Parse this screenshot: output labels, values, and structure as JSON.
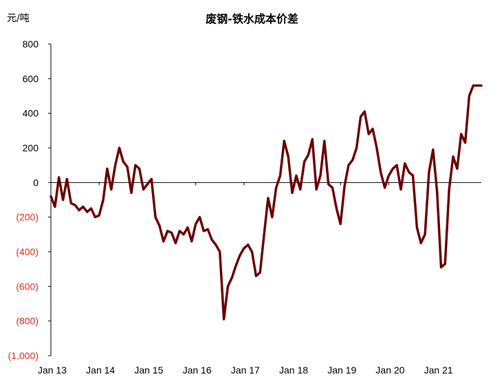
{
  "chart_data": {
    "type": "line",
    "title": "废钢-铁水成本价差",
    "ylabel": "元/吨",
    "xlabel": "",
    "ylim": [
      -1000,
      800
    ],
    "y_ticks": [
      800,
      600,
      400,
      200,
      0,
      -200,
      -400,
      -600,
      -800,
      -1000
    ],
    "y_tick_labels": [
      "800",
      "600",
      "400",
      "200",
      "0",
      "(200)",
      "(400)",
      "(600)",
      "(800)",
      "(1,000)"
    ],
    "negative_label_color": "#e0301e",
    "x_tick_labels": [
      "Jan 13",
      "Jan 14",
      "Jan 15",
      "Jan 16",
      "Jan 17",
      "Jan 18",
      "Jan 19",
      "Jan 20",
      "Jan 21"
    ],
    "xlim": [
      "2013-01",
      "2021-12"
    ],
    "grid": false,
    "line_color": "#6b0000",
    "series": [
      {
        "x": [
          "2013-01",
          "2013-02",
          "2013-03",
          "2013-04",
          "2013-05",
          "2013-06",
          "2013-07",
          "2013-08",
          "2013-09",
          "2013-10",
          "2013-11",
          "2013-12",
          "2014-01",
          "2014-02",
          "2014-03",
          "2014-04",
          "2014-05",
          "2014-06",
          "2014-07",
          "2014-08",
          "2014-09",
          "2014-10",
          "2014-11",
          "2014-12",
          "2015-01",
          "2015-02",
          "2015-03",
          "2015-04",
          "2015-05",
          "2015-06",
          "2015-07",
          "2015-08",
          "2015-09",
          "2015-10",
          "2015-11",
          "2015-12",
          "2016-01",
          "2016-02",
          "2016-03",
          "2016-04",
          "2016-05",
          "2016-06",
          "2016-07",
          "2016-08",
          "2016-09",
          "2016-10",
          "2016-11",
          "2016-12",
          "2017-01",
          "2017-02",
          "2017-03",
          "2017-04",
          "2017-05",
          "2017-06",
          "2017-07",
          "2017-08",
          "2017-09",
          "2017-10",
          "2017-11",
          "2017-12",
          "2018-01",
          "2018-02",
          "2018-03",
          "2018-04",
          "2018-05",
          "2018-06",
          "2018-07",
          "2018-08",
          "2018-09",
          "2018-10",
          "2018-11",
          "2018-12",
          "2019-01",
          "2019-02",
          "2019-03",
          "2019-04",
          "2019-05",
          "2019-06",
          "2019-07",
          "2019-08",
          "2019-09",
          "2019-10",
          "2019-11",
          "2019-12",
          "2020-01",
          "2020-02",
          "2020-03",
          "2020-04",
          "2020-05",
          "2020-06",
          "2020-07",
          "2020-08",
          "2020-09",
          "2020-10",
          "2020-11",
          "2020-12",
          "2021-01",
          "2021-02",
          "2021-03",
          "2021-04",
          "2021-05",
          "2021-06",
          "2021-07",
          "2021-08",
          "2021-09",
          "2021-10",
          "2021-11",
          "2021-12"
        ],
        "y": [
          -80,
          -140,
          30,
          -100,
          20,
          -120,
          -130,
          -160,
          -140,
          -170,
          -150,
          -200,
          -190,
          -100,
          80,
          -40,
          100,
          200,
          120,
          90,
          -60,
          100,
          80,
          -40,
          -10,
          20,
          -200,
          -250,
          -340,
          -280,
          -290,
          -350,
          -280,
          -300,
          -260,
          -340,
          -240,
          -200,
          -280,
          -270,
          -330,
          -360,
          -400,
          -790,
          -600,
          -550,
          -480,
          -420,
          -380,
          -360,
          -400,
          -540,
          -520,
          -300,
          -90,
          -200,
          -30,
          40,
          240,
          150,
          -60,
          40,
          -40,
          120,
          160,
          250,
          -40,
          40,
          240,
          -10,
          -30,
          -150,
          -240,
          -20,
          100,
          130,
          200,
          380,
          410,
          280,
          310,
          200,
          60,
          -30,
          40,
          80,
          100,
          -40,
          110,
          60,
          40,
          -260,
          -350,
          -300,
          60,
          190,
          -50,
          -490,
          -470,
          -40,
          150,
          80,
          280,
          230,
          500,
          560,
          560,
          560
        ]
      }
    ]
  }
}
